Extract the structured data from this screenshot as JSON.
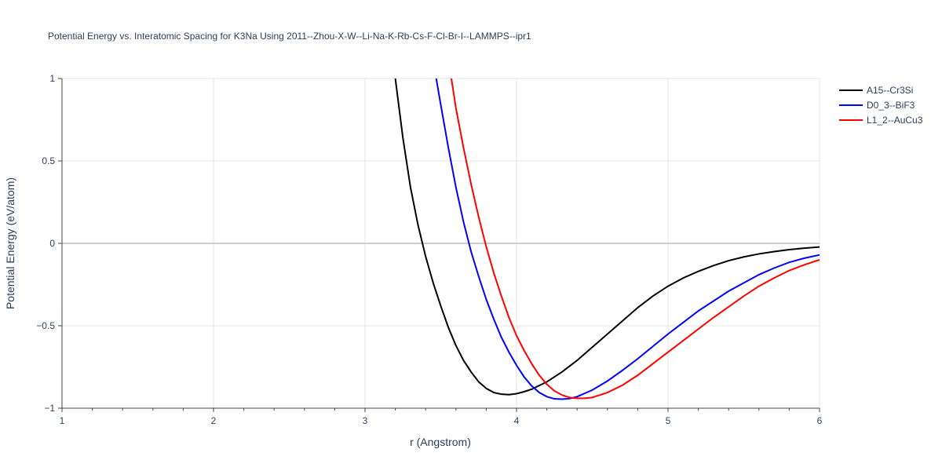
{
  "chart_data": {
    "type": "line",
    "title": "Potential Energy vs. Interatomic Spacing for K3Na Using 2011--Zhou-X-W--Li-Na-K-Rb-Cs-F-Cl-Br-I--LAMMPS--ipr1",
    "xlabel": "r (Angstrom)",
    "ylabel": "Potential Energy (eV/atom)",
    "xlim": [
      1,
      6
    ],
    "ylim": [
      -1,
      1
    ],
    "xticks": [
      1,
      2,
      3,
      4,
      5,
      6
    ],
    "xtick_labels": [
      "1",
      "2",
      "3",
      "4",
      "5",
      "6"
    ],
    "yticks": [
      -1,
      -0.5,
      0,
      0.5,
      1
    ],
    "ytick_labels": [
      "−1",
      "−0.5",
      "0",
      "0.5",
      "1"
    ],
    "grid": true,
    "legend_position": "top-right",
    "series": [
      {
        "name": "A15--Cr3Si",
        "color": "#000000",
        "x": [
          3.2,
          3.25,
          3.3,
          3.35,
          3.4,
          3.45,
          3.5,
          3.55,
          3.6,
          3.65,
          3.7,
          3.75,
          3.8,
          3.85,
          3.9,
          3.95,
          4.0,
          4.05,
          4.1,
          4.2,
          4.3,
          4.4,
          4.5,
          4.6,
          4.7,
          4.8,
          4.9,
          5.0,
          5.1,
          5.2,
          5.3,
          5.4,
          5.5,
          5.6,
          5.7,
          5.8,
          5.9,
          6.0
        ],
        "y": [
          1.0,
          0.64,
          0.34,
          0.11,
          -0.08,
          -0.24,
          -0.38,
          -0.51,
          -0.62,
          -0.71,
          -0.78,
          -0.84,
          -0.88,
          -0.905,
          -0.915,
          -0.918,
          -0.912,
          -0.9,
          -0.885,
          -0.84,
          -0.78,
          -0.71,
          -0.63,
          -0.55,
          -0.47,
          -0.39,
          -0.32,
          -0.26,
          -0.21,
          -0.17,
          -0.135,
          -0.105,
          -0.082,
          -0.064,
          -0.05,
          -0.038,
          -0.029,
          -0.022
        ]
      },
      {
        "name": "D0_3--BiF3",
        "color": "#0000ff",
        "x": [
          3.47,
          3.5,
          3.55,
          3.6,
          3.65,
          3.7,
          3.75,
          3.8,
          3.85,
          3.9,
          3.95,
          4.0,
          4.05,
          4.1,
          4.15,
          4.2,
          4.25,
          4.3,
          4.35,
          4.4,
          4.5,
          4.6,
          4.7,
          4.8,
          4.9,
          5.0,
          5.1,
          5.2,
          5.3,
          5.4,
          5.5,
          5.6,
          5.7,
          5.8,
          5.9,
          6.0
        ],
        "y": [
          1.0,
          0.84,
          0.58,
          0.34,
          0.13,
          -0.05,
          -0.2,
          -0.34,
          -0.46,
          -0.57,
          -0.66,
          -0.74,
          -0.81,
          -0.865,
          -0.905,
          -0.93,
          -0.943,
          -0.945,
          -0.942,
          -0.93,
          -0.89,
          -0.835,
          -0.77,
          -0.7,
          -0.625,
          -0.55,
          -0.48,
          -0.41,
          -0.35,
          -0.29,
          -0.24,
          -0.19,
          -0.15,
          -0.115,
          -0.09,
          -0.07
        ]
      },
      {
        "name": "L1_2--AuCu3",
        "color": "#ff0000",
        "x": [
          3.57,
          3.6,
          3.65,
          3.7,
          3.75,
          3.8,
          3.85,
          3.9,
          3.95,
          4.0,
          4.05,
          4.1,
          4.15,
          4.2,
          4.25,
          4.3,
          4.35,
          4.4,
          4.45,
          4.5,
          4.6,
          4.7,
          4.8,
          4.9,
          5.0,
          5.1,
          5.2,
          5.3,
          5.4,
          5.5,
          5.6,
          5.7,
          5.8,
          5.9,
          6.0
        ],
        "y": [
          1.0,
          0.82,
          0.58,
          0.36,
          0.16,
          -0.02,
          -0.18,
          -0.32,
          -0.45,
          -0.56,
          -0.65,
          -0.73,
          -0.8,
          -0.855,
          -0.895,
          -0.92,
          -0.935,
          -0.94,
          -0.94,
          -0.935,
          -0.905,
          -0.86,
          -0.8,
          -0.73,
          -0.66,
          -0.59,
          -0.52,
          -0.45,
          -0.385,
          -0.32,
          -0.26,
          -0.21,
          -0.165,
          -0.13,
          -0.1
        ]
      }
    ]
  }
}
